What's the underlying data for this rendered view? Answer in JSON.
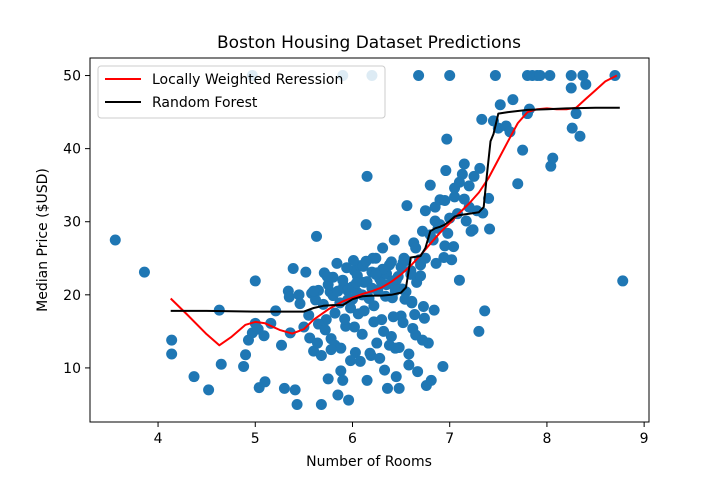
{
  "chart_data": {
    "type": "scatter",
    "title": "Boston Housing Dataset Predictions",
    "xlabel": "Number of Rooms",
    "ylabel": "Median Price ($USD)",
    "xlim": [
      3.3,
      9.05
    ],
    "ylim": [
      2.6,
      52.4
    ],
    "xticks": [
      4,
      5,
      6,
      7,
      8,
      9
    ],
    "yticks": [
      10,
      20,
      30,
      40,
      50
    ],
    "grid": false,
    "legend_position": "upper-left",
    "colors": {
      "scatter": "#1f77b4",
      "lwr": "#ff0000",
      "rf": "#000000"
    },
    "scatter": {
      "name": "",
      "points": [
        [
          3.56,
          27.5
        ],
        [
          3.86,
          23.1
        ],
        [
          4.14,
          13.8
        ],
        [
          4.14,
          11.9
        ],
        [
          4.37,
          8.8
        ],
        [
          4.52,
          7.0
        ],
        [
          4.63,
          17.9
        ],
        [
          4.65,
          10.5
        ],
        [
          4.88,
          10.2
        ],
        [
          4.9,
          11.8
        ],
        [
          4.93,
          13.8
        ],
        [
          4.97,
          14.8
        ],
        [
          5.0,
          21.9
        ],
        [
          5.0,
          16.1
        ],
        [
          5.03,
          15.3
        ],
        [
          5.04,
          7.3
        ],
        [
          5.09,
          14.4
        ],
        [
          5.1,
          8.1
        ],
        [
          5.16,
          16.1
        ],
        [
          5.21,
          17.8
        ],
        [
          5.27,
          13.1
        ],
        [
          5.3,
          7.2
        ],
        [
          5.34,
          20.5
        ],
        [
          5.35,
          19.7
        ],
        [
          5.36,
          14.8
        ],
        [
          5.39,
          23.6
        ],
        [
          5.41,
          7.0
        ],
        [
          5.43,
          5.0
        ],
        [
          5.45,
          20.0
        ],
        [
          5.46,
          18.8
        ],
        [
          5.5,
          15.6
        ],
        [
          5.52,
          23.1
        ],
        [
          5.56,
          14.1
        ],
        [
          5.58,
          20.2
        ],
        [
          5.6,
          12.3
        ],
        [
          5.62,
          19.3
        ],
        [
          5.63,
          28.0
        ],
        [
          5.64,
          13.4
        ],
        [
          5.65,
          20.6
        ],
        [
          5.68,
          5.0
        ],
        [
          5.71,
          23.0
        ],
        [
          5.73,
          16.6
        ],
        [
          5.75,
          8.5
        ],
        [
          5.77,
          20.4
        ],
        [
          5.78,
          14.0
        ],
        [
          5.8,
          22.4
        ],
        [
          5.82,
          13.1
        ],
        [
          5.85,
          6.3
        ],
        [
          5.87,
          18.9
        ],
        [
          5.88,
          12.7
        ],
        [
          5.9,
          8.3
        ],
        [
          5.91,
          21.2
        ],
        [
          5.93,
          15.7
        ],
        [
          5.95,
          20.6
        ],
        [
          5.96,
          5.6
        ],
        [
          5.98,
          18.2
        ],
        [
          6.0,
          19.4
        ],
        [
          6.02,
          23.3
        ],
        [
          6.03,
          12.1
        ],
        [
          6.05,
          20.3
        ],
        [
          6.06,
          17.4
        ],
        [
          6.08,
          24.0
        ],
        [
          6.1,
          14.6
        ],
        [
          6.12,
          21.7
        ],
        [
          6.14,
          29.6
        ],
        [
          6.15,
          8.3
        ],
        [
          6.15,
          36.2
        ],
        [
          6.17,
          19.5
        ],
        [
          6.19,
          11.7
        ],
        [
          6.2,
          23.1
        ],
        [
          6.22,
          18.5
        ],
        [
          6.24,
          25.0
        ],
        [
          6.25,
          13.4
        ],
        [
          6.26,
          20.6
        ],
        [
          6.28,
          22.2
        ],
        [
          6.3,
          16.6
        ],
        [
          6.31,
          26.4
        ],
        [
          6.33,
          9.7
        ],
        [
          6.35,
          21.4
        ],
        [
          6.36,
          7.2
        ],
        [
          6.38,
          24.1
        ],
        [
          6.4,
          14.3
        ],
        [
          6.41,
          19.6
        ],
        [
          6.43,
          27.5
        ],
        [
          6.44,
          12.7
        ],
        [
          6.45,
          8.8
        ],
        [
          6.47,
          22.5
        ],
        [
          6.48,
          7.2
        ],
        [
          6.5,
          17.1
        ],
        [
          6.52,
          24.4
        ],
        [
          6.53,
          25.0
        ],
        [
          6.55,
          20.4
        ],
        [
          6.56,
          32.2
        ],
        [
          6.58,
          10.4
        ],
        [
          6.6,
          23.3
        ],
        [
          6.61,
          19.1
        ],
        [
          6.63,
          27.1
        ],
        [
          6.65,
          14.5
        ],
        [
          6.66,
          21.7
        ],
        [
          6.67,
          9.5
        ],
        [
          6.69,
          24.8
        ],
        [
          6.7,
          22.6
        ],
        [
          6.72,
          28.7
        ],
        [
          6.73,
          18.4
        ],
        [
          6.75,
          31.5
        ],
        [
          6.76,
          7.6
        ],
        [
          6.78,
          13.4
        ],
        [
          6.8,
          35.0
        ],
        [
          6.81,
          8.3
        ],
        [
          6.83,
          27.5
        ],
        [
          6.85,
          32.0
        ],
        [
          6.86,
          24.3
        ],
        [
          6.88,
          29.1
        ],
        [
          6.9,
          33.0
        ],
        [
          6.93,
          10.2
        ],
        [
          6.95,
          26.7
        ],
        [
          6.96,
          37.0
        ],
        [
          6.97,
          41.3
        ],
        [
          6.98,
          28.4
        ],
        [
          7.0,
          50.0
        ],
        [
          7.02,
          24.8
        ],
        [
          7.05,
          33.4
        ],
        [
          7.08,
          31.1
        ],
        [
          7.1,
          22.0
        ],
        [
          7.13,
          36.5
        ],
        [
          7.15,
          37.9
        ],
        [
          7.17,
          30.1
        ],
        [
          7.2,
          34.9
        ],
        [
          7.22,
          28.7
        ],
        [
          7.25,
          36.2
        ],
        [
          7.28,
          31.5
        ],
        [
          7.3,
          15.0
        ],
        [
          7.31,
          37.3
        ],
        [
          7.33,
          44.0
        ],
        [
          7.36,
          17.8
        ],
        [
          7.4,
          33.2
        ],
        [
          7.41,
          29.0
        ],
        [
          7.45,
          43.8
        ],
        [
          7.47,
          50.0
        ],
        [
          7.5,
          42.8
        ],
        [
          7.52,
          46.0
        ],
        [
          7.58,
          43.1
        ],
        [
          7.62,
          42.3
        ],
        [
          7.65,
          46.7
        ],
        [
          7.7,
          35.2
        ],
        [
          7.75,
          39.8
        ],
        [
          7.8,
          50.0
        ],
        [
          7.8,
          44.8
        ],
        [
          7.82,
          45.4
        ],
        [
          7.85,
          50.0
        ],
        [
          7.9,
          50.0
        ],
        [
          7.93,
          50.0
        ],
        [
          8.03,
          50.0
        ],
        [
          8.04,
          37.6
        ],
        [
          8.06,
          38.7
        ],
        [
          8.25,
          50.0
        ],
        [
          8.25,
          48.3
        ],
        [
          8.26,
          42.8
        ],
        [
          8.3,
          44.8
        ],
        [
          8.34,
          41.7
        ],
        [
          8.37,
          50.0
        ],
        [
          8.4,
          48.8
        ],
        [
          8.7,
          50.0
        ],
        [
          8.78,
          21.9
        ],
        [
          4.97,
          50.0
        ],
        [
          5.9,
          50.0
        ],
        [
          6.2,
          50.0
        ],
        [
          6.68,
          50.0
        ],
        [
          5.6,
          20.5
        ],
        [
          5.7,
          18.7
        ],
        [
          5.75,
          21.4
        ],
        [
          5.8,
          19.9
        ],
        [
          5.85,
          20.5
        ],
        [
          5.9,
          22.0
        ],
        [
          5.95,
          19.3
        ],
        [
          6.0,
          21.1
        ],
        [
          6.05,
          22.6
        ],
        [
          6.1,
          20.0
        ],
        [
          6.15,
          21.8
        ],
        [
          6.2,
          20.9
        ],
        [
          6.25,
          23.0
        ],
        [
          6.3,
          21.6
        ],
        [
          6.35,
          22.9
        ],
        [
          6.4,
          24.5
        ],
        [
          6.45,
          22.0
        ],
        [
          6.5,
          23.8
        ],
        [
          6.55,
          24.7
        ],
        [
          6.6,
          22.8
        ],
        [
          6.65,
          26.4
        ],
        [
          6.7,
          24.1
        ],
        [
          6.75,
          25.0
        ],
        [
          6.8,
          28.2
        ],
        [
          6.85,
          30.1
        ],
        [
          6.9,
          29.6
        ],
        [
          6.95,
          32.9
        ],
        [
          7.0,
          30.5
        ],
        [
          7.05,
          34.6
        ],
        [
          7.1,
          35.4
        ],
        [
          7.15,
          33.1
        ],
        [
          7.2,
          32.0
        ],
        [
          5.55,
          17.2
        ],
        [
          5.65,
          16.0
        ],
        [
          5.72,
          15.2
        ],
        [
          5.82,
          17.5
        ],
        [
          5.92,
          16.7
        ],
        [
          6.02,
          15.6
        ],
        [
          6.12,
          17.8
        ],
        [
          6.22,
          16.3
        ],
        [
          6.32,
          15.0
        ],
        [
          6.42,
          17.0
        ],
        [
          6.52,
          16.2
        ],
        [
          6.62,
          15.4
        ],
        [
          6.72,
          13.8
        ],
        [
          5.68,
          11.7
        ],
        [
          5.78,
          12.5
        ],
        [
          5.88,
          9.6
        ],
        [
          5.98,
          11.0
        ],
        [
          6.08,
          10.9
        ],
        [
          6.18,
          12.0
        ],
        [
          6.28,
          11.3
        ],
        [
          6.38,
          13.1
        ],
        [
          6.48,
          12.8
        ],
        [
          6.58,
          11.9
        ],
        [
          6.01,
          24.7
        ],
        [
          6.11,
          23.9
        ],
        [
          6.21,
          25.0
        ],
        [
          6.31,
          23.5
        ],
        [
          6.41,
          21.9
        ],
        [
          6.51,
          20.8
        ],
        [
          6.61,
          18.9
        ],
        [
          5.74,
          22.5
        ],
        [
          5.84,
          24.3
        ],
        [
          5.94,
          23.7
        ],
        [
          6.04,
          21.6
        ],
        [
          6.14,
          24.6
        ],
        [
          6.24,
          22.8
        ],
        [
          6.34,
          19.8
        ],
        [
          6.44,
          20.6
        ],
        [
          6.54,
          19.4
        ],
        [
          6.64,
          17.3
        ],
        [
          6.74,
          16.8
        ],
        [
          6.84,
          17.9
        ],
        [
          6.94,
          25.1
        ],
        [
          7.04,
          26.6
        ],
        [
          7.24,
          28.9
        ],
        [
          7.34,
          31.2
        ]
      ]
    },
    "series": [
      {
        "name": "Locally Weighted Reression",
        "x": [
          4.13,
          4.3,
          4.5,
          4.63,
          4.75,
          4.9,
          5.0,
          5.1,
          5.25,
          5.38,
          5.5,
          5.6,
          5.75,
          5.9,
          6.0,
          6.1,
          6.2,
          6.3,
          6.4,
          6.5,
          6.6,
          6.7,
          6.8,
          6.9,
          7.0,
          7.1,
          7.2,
          7.3,
          7.4,
          7.5,
          7.6,
          7.7,
          7.8,
          7.9,
          8.0,
          8.1,
          8.2,
          8.3,
          8.4,
          8.5,
          8.6,
          8.72
        ],
        "y": [
          19.5,
          17.3,
          14.6,
          13.1,
          14.2,
          15.9,
          16.3,
          16.1,
          15.2,
          14.7,
          15.3,
          16.6,
          18.0,
          19.1,
          19.6,
          20.1,
          20.5,
          21.0,
          21.8,
          22.8,
          24.0,
          25.4,
          27.0,
          28.5,
          29.8,
          31.2,
          32.5,
          34.0,
          36.0,
          38.5,
          41.0,
          43.5,
          45.0,
          45.4,
          45.5,
          45.4,
          45.4,
          45.6,
          46.8,
          48.0,
          49.2,
          50.0
        ]
      },
      {
        "name": "Random Forest",
        "x": [
          4.13,
          4.5,
          5.0,
          5.5,
          5.6,
          5.7,
          5.8,
          5.9,
          6.0,
          6.1,
          6.2,
          6.3,
          6.4,
          6.5,
          6.55,
          6.6,
          6.65,
          6.7,
          6.75,
          6.8,
          6.85,
          6.9,
          6.95,
          7.0,
          7.05,
          7.1,
          7.2,
          7.3,
          7.35,
          7.38,
          7.42,
          7.45,
          7.5,
          7.6,
          7.8,
          8.0,
          8.2,
          8.5,
          8.75
        ],
        "y": [
          17.8,
          17.8,
          17.7,
          17.7,
          18.2,
          18.5,
          18.6,
          18.6,
          19.4,
          19.8,
          19.9,
          19.9,
          20.0,
          20.3,
          21.0,
          25.1,
          25.2,
          25.3,
          26.4,
          28.7,
          29.1,
          29.3,
          29.6,
          30.1,
          30.7,
          30.9,
          31.1,
          31.3,
          32.0,
          36.0,
          41.0,
          42.0,
          44.8,
          45.0,
          45.3,
          45.4,
          45.5,
          45.6,
          45.6
        ]
      }
    ]
  }
}
